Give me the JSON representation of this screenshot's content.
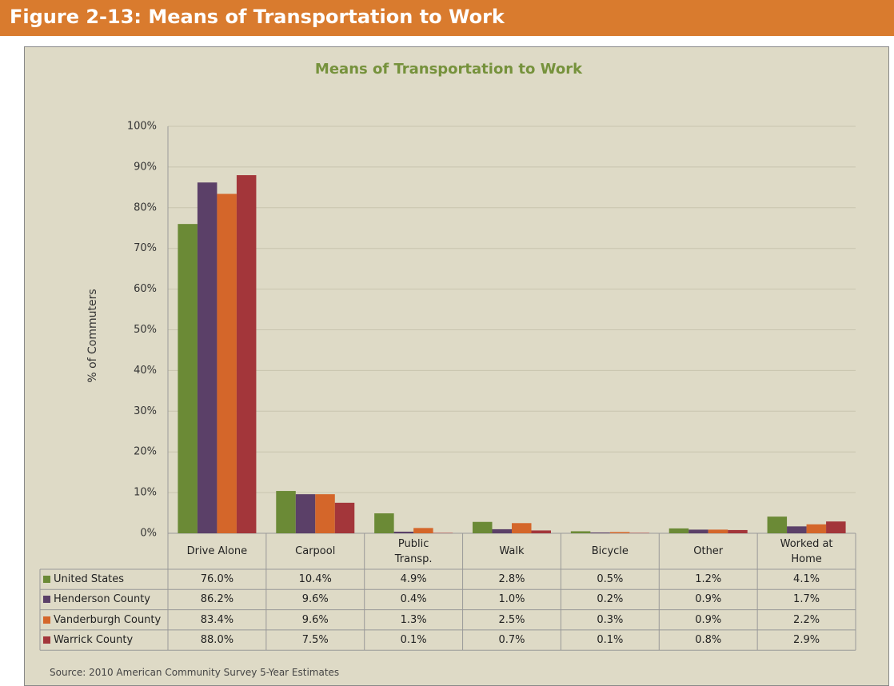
{
  "header": {
    "title": "Figure 2-13: Means of Transportation to Work"
  },
  "chart_data": {
    "type": "bar",
    "title": "Means of Transportation to Work",
    "y_label": "% of Commuters",
    "categories": [
      "Drive Alone",
      "Carpool",
      "Public Transp.",
      "Walk",
      "Bicycle",
      "Other",
      "Worked at Home"
    ],
    "series": [
      {
        "name": "United States",
        "color": "#6b8a36",
        "values": [
          76.0,
          10.4,
          4.9,
          2.8,
          0.5,
          1.2,
          4.1
        ],
        "value_labels": [
          "76.0%",
          "10.4%",
          "4.9%",
          "2.8%",
          "0.5%",
          "1.2%",
          "4.1%"
        ]
      },
      {
        "name": "Henderson County",
        "color": "#5b4068",
        "values": [
          86.2,
          9.6,
          0.4,
          1.0,
          0.2,
          0.9,
          1.7
        ],
        "value_labels": [
          "86.2%",
          "9.6%",
          "0.4%",
          "1.0%",
          "0.2%",
          "0.9%",
          "1.7%"
        ]
      },
      {
        "name": "Vanderburgh County",
        "color": "#d4662a",
        "values": [
          83.4,
          9.6,
          1.3,
          2.5,
          0.3,
          0.9,
          2.2
        ],
        "value_labels": [
          "83.4%",
          "9.6%",
          "1.3%",
          "2.5%",
          "0.3%",
          "0.9%",
          "2.2%"
        ]
      },
      {
        "name": "Warrick County",
        "color": "#a3363a",
        "values": [
          88.0,
          7.5,
          0.1,
          0.7,
          0.1,
          0.8,
          2.9
        ],
        "value_labels": [
          "88.0%",
          "7.5%",
          "0.1%",
          "0.7%",
          "0.1%",
          "0.8%",
          "2.9%"
        ]
      }
    ],
    "ylim": [
      0,
      100
    ],
    "yticks": [
      {
        "value": 0,
        "label": "0%"
      },
      {
        "value": 10,
        "label": "10%"
      },
      {
        "value": 20,
        "label": "20%"
      },
      {
        "value": 30,
        "label": "30%"
      },
      {
        "value": 40,
        "label": "40%"
      },
      {
        "value": 50,
        "label": "50%"
      },
      {
        "value": 60,
        "label": "60%"
      },
      {
        "value": 70,
        "label": "70%"
      },
      {
        "value": 80,
        "label": "80%"
      },
      {
        "value": 90,
        "label": "90%"
      },
      {
        "value": 100,
        "label": "100%"
      }
    ],
    "grid": true,
    "source": "Source: 2010 American Community Survey 5-Year Estimates"
  }
}
